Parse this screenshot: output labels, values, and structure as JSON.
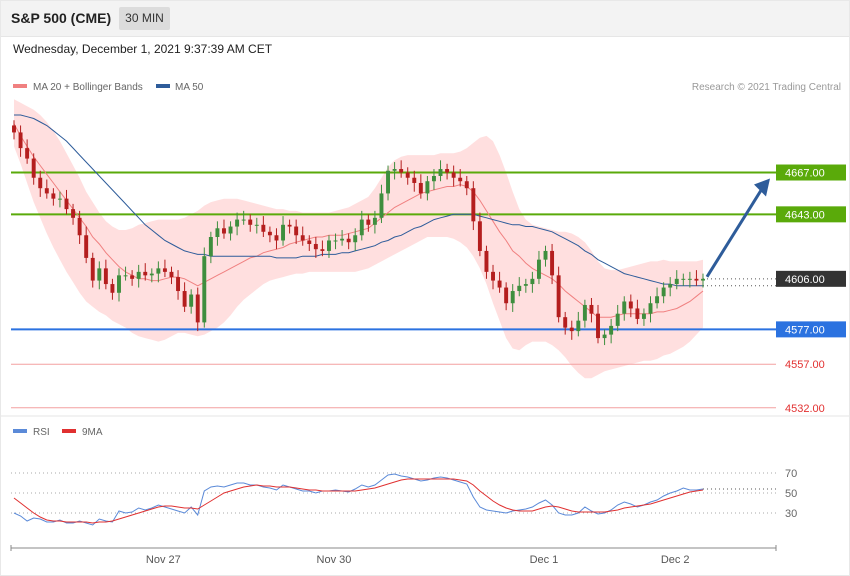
{
  "header": {
    "title": "S&P 500 (CME)",
    "timeframe": "30 MIN"
  },
  "datetime": "Wednesday, December 1, 2021 9:37:39 AM CET",
  "copyright": "Research © 2021 Trading Central",
  "colors": {
    "ma20": "#f08080",
    "ma50": "#2e5c9a",
    "bb_fill": "#ffd9d9",
    "resistance": "#5aaa0a",
    "support": "#2b72e0",
    "lower_levels": "#e23030",
    "current": "#333333",
    "arrow": "#2e5c9a",
    "candle_up": "#3e8e3e",
    "candle_down": "#b41e1e",
    "rsi": "#5b8ad8",
    "rsi_ma": "#e03030"
  },
  "chart_data": [
    {
      "type": "candlestick",
      "legend": [
        {
          "name": "MA 20 + Bollinger Bands",
          "color": "#f08080"
        },
        {
          "name": "MA 50",
          "color": "#2e5c9a"
        }
      ],
      "x_labels": [
        "Nov 27",
        "Nov 30",
        "Dec 1",
        "Dec 2"
      ],
      "ylim": [
        4525,
        4700
      ],
      "levels": [
        {
          "value": 4667.0,
          "label": "4667.00",
          "kind": "resistance"
        },
        {
          "value": 4643.0,
          "label": "4643.00",
          "kind": "resistance"
        },
        {
          "value": 4606.0,
          "label": "4606.00",
          "kind": "current"
        },
        {
          "value": 4577.0,
          "label": "4577.00",
          "kind": "support"
        },
        {
          "value": 4557.0,
          "label": "4557.00",
          "kind": "minor"
        },
        {
          "value": 4532.0,
          "label": "4532.00",
          "kind": "minor"
        }
      ],
      "close": [
        4690,
        4681,
        4675,
        4664,
        4658,
        4655,
        4652,
        4652,
        4646,
        4641,
        4631,
        4618,
        4605,
        4612,
        4603,
        4598,
        4608,
        4608,
        4606,
        4610,
        4608,
        4609,
        4612,
        4610,
        4607,
        4599,
        4590,
        4597,
        4581,
        4619,
        4630,
        4635,
        4632,
        4636,
        4640,
        4640,
        4637,
        4637,
        4633,
        4631,
        4628,
        4637,
        4636,
        4631,
        4628,
        4626,
        4623,
        4622,
        4628,
        4628,
        4629,
        4627,
        4631,
        4640,
        4637,
        4641,
        4655,
        4668,
        4669,
        4667,
        4664,
        4661,
        4655,
        4662,
        4665,
        4669,
        4667,
        4664,
        4662,
        4658,
        4639,
        4622,
        4610,
        4605,
        4601,
        4592,
        4599,
        4602,
        4603,
        4606,
        4617,
        4622,
        4608,
        4584,
        4578,
        4576,
        4582,
        4591,
        4586,
        4572,
        4574,
        4579,
        4586,
        4593,
        4589,
        4583,
        4586,
        4592,
        4596,
        4601,
        4603,
        4606,
        4606,
        4606,
        4605,
        4606
      ],
      "ma20": [
        4695,
        4688,
        4682,
        4676,
        4671,
        4666,
        4661,
        4656,
        4651,
        4646,
        4641,
        4636,
        4630,
        4626,
        4621,
        4617,
        4613,
        4610,
        4608,
        4606,
        4606,
        4605,
        4605,
        4606,
        4607,
        4607,
        4606,
        4604,
        4602,
        4604,
        4606,
        4608,
        4610,
        4612,
        4614,
        4616,
        4618,
        4619,
        4621,
        4622,
        4623,
        4624,
        4626,
        4627,
        4628,
        4629,
        4630,
        4630,
        4631,
        4631,
        4631,
        4632,
        4633,
        4634,
        4635,
        4638,
        4641,
        4644,
        4647,
        4649,
        4651,
        4653,
        4655,
        4656,
        4657,
        4658,
        4659,
        4659,
        4660,
        4659,
        4656,
        4651,
        4645,
        4639,
        4633,
        4628,
        4622,
        4619,
        4615,
        4612,
        4610,
        4608,
        4606,
        4603,
        4599,
        4596,
        4593,
        4590,
        4587,
        4584,
        4584,
        4584,
        4585,
        4586,
        4586,
        4586,
        4586,
        4586,
        4587,
        4587,
        4588,
        4589,
        4591,
        4593,
        4596,
        4599
      ],
      "ma50": [
        4700,
        4700,
        4699,
        4698,
        4696,
        4694,
        4691,
        4688,
        4685,
        4681,
        4677,
        4673,
        4669,
        4665,
        4661,
        4657,
        4653,
        4649,
        4645,
        4641,
        4637,
        4634,
        4631,
        4628,
        4626,
        4624,
        4622,
        4621,
        4620,
        4620,
        4619,
        4619,
        4619,
        4619,
        4619,
        4619,
        4619,
        4619,
        4619,
        4619,
        4618,
        4618,
        4618,
        4618,
        4619,
        4619,
        4619,
        4620,
        4620,
        4620,
        4621,
        4621,
        4622,
        4623,
        4624,
        4625,
        4627,
        4628,
        4630,
        4631,
        4633,
        4635,
        4636,
        4638,
        4640,
        4641,
        4642,
        4643,
        4643,
        4643,
        4643,
        4642,
        4641,
        4640,
        4639,
        4638,
        4637,
        4637,
        4636,
        4636,
        4635,
        4634,
        4633,
        4631,
        4629,
        4627,
        4625,
        4622,
        4620,
        4617,
        4615,
        4613,
        4611,
        4609,
        4608,
        4607,
        4606,
        4605,
        4604,
        4603,
        4603,
        4602,
        4602,
        4602,
        4602,
        4602
      ],
      "bb_upper": [
        4709,
        4707,
        4705,
        4703,
        4700,
        4696,
        4691,
        4685,
        4678,
        4671,
        4664,
        4656,
        4650,
        4644,
        4639,
        4636,
        4634,
        4634,
        4635,
        4637,
        4638,
        4639,
        4640,
        4640,
        4640,
        4640,
        4641,
        4643,
        4645,
        4648,
        4650,
        4651,
        4652,
        4652,
        4652,
        4651,
        4650,
        4649,
        4648,
        4647,
        4646,
        4646,
        4645,
        4645,
        4644,
        4644,
        4644,
        4644,
        4644,
        4645,
        4646,
        4647,
        4649,
        4651,
        4653,
        4658,
        4664,
        4670,
        4674,
        4676,
        4677,
        4677,
        4677,
        4677,
        4677,
        4678,
        4678,
        4678,
        4679,
        4681,
        4684,
        4687,
        4688,
        4685,
        4677,
        4667,
        4656,
        4646,
        4640,
        4637,
        4636,
        4635,
        4634,
        4633,
        4633,
        4632,
        4630,
        4627,
        4622,
        4616,
        4612,
        4611,
        4611,
        4612,
        4613,
        4614,
        4615,
        4616,
        4616,
        4617,
        4616,
        4616,
        4616,
        4616,
        4616,
        4617
      ],
      "bb_lower": [
        4682,
        4672,
        4661,
        4650,
        4641,
        4632,
        4624,
        4617,
        4610,
        4604,
        4598,
        4593,
        4590,
        4587,
        4585,
        4582,
        4580,
        4578,
        4575,
        4573,
        4572,
        4571,
        4570,
        4571,
        4573,
        4575,
        4575,
        4574,
        4573,
        4574,
        4576,
        4578,
        4581,
        4585,
        4590,
        4594,
        4597,
        4600,
        4603,
        4605,
        4606,
        4607,
        4608,
        4609,
        4609,
        4610,
        4610,
        4610,
        4610,
        4610,
        4610,
        4610,
        4610,
        4611,
        4612,
        4614,
        4616,
        4618,
        4620,
        4622,
        4624,
        4626,
        4628,
        4630,
        4630,
        4630,
        4630,
        4629,
        4627,
        4624,
        4619,
        4612,
        4603,
        4592,
        4582,
        4572,
        4566,
        4565,
        4568,
        4570,
        4570,
        4570,
        4568,
        4565,
        4561,
        4556,
        4552,
        4549,
        4549,
        4551,
        4553,
        4554,
        4555,
        4556,
        4557,
        4558,
        4559,
        4559,
        4560,
        4562,
        4563,
        4565,
        4567,
        4570,
        4574,
        4578
      ]
    },
    {
      "type": "line",
      "legend": [
        {
          "name": "RSI",
          "color": "#5b8ad8"
        },
        {
          "name": "9MA",
          "color": "#e03030"
        }
      ],
      "ylim": [
        0,
        100
      ],
      "y_ticks": [
        30,
        50,
        70
      ],
      "rsi": [
        30,
        27,
        22,
        25,
        24,
        21,
        21,
        23,
        20,
        20,
        22,
        20,
        18,
        24,
        22,
        21,
        32,
        30,
        31,
        35,
        33,
        35,
        38,
        36,
        34,
        32,
        30,
        36,
        28,
        52,
        56,
        57,
        56,
        58,
        60,
        60,
        58,
        58,
        56,
        55,
        53,
        58,
        56,
        54,
        52,
        52,
        50,
        52,
        52,
        53,
        52,
        51,
        54,
        58,
        56,
        58,
        63,
        68,
        69,
        67,
        66,
        64,
        62,
        63,
        65,
        66,
        65,
        63,
        61,
        59,
        46,
        36,
        33,
        32,
        31,
        30,
        32,
        33,
        34,
        36,
        40,
        43,
        38,
        30,
        28,
        28,
        30,
        36,
        32,
        29,
        30,
        33,
        38,
        41,
        39,
        36,
        38,
        41,
        43,
        47,
        50,
        52,
        55,
        53,
        53,
        54
      ],
      "rsi_ma": [
        45,
        40,
        35,
        30,
        26,
        23,
        22,
        22,
        21,
        21,
        21,
        21,
        20,
        21,
        21,
        22,
        24,
        26,
        28,
        30,
        32,
        34,
        36,
        37,
        37,
        36,
        35,
        35,
        34,
        38,
        42,
        46,
        50,
        52,
        54,
        56,
        57,
        58,
        57,
        57,
        56,
        56,
        56,
        55,
        54,
        53,
        53,
        52,
        52,
        52,
        52,
        52,
        52,
        53,
        54,
        55,
        57,
        59,
        61,
        63,
        64,
        64,
        64,
        64,
        64,
        64,
        64,
        64,
        63,
        62,
        58,
        52,
        47,
        42,
        38,
        35,
        33,
        32,
        32,
        32,
        34,
        36,
        37,
        36,
        34,
        32,
        31,
        31,
        31,
        31,
        31,
        32,
        33,
        35,
        36,
        37,
        38,
        39,
        41,
        43,
        45,
        47,
        49,
        51,
        52,
        53
      ]
    }
  ]
}
